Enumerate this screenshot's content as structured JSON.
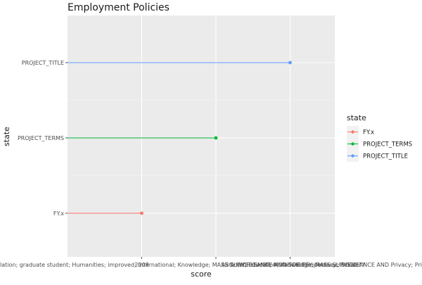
{
  "chart_data": {
    "type": "lollipop",
    "title": "Employment Policies",
    "xlabel": "score",
    "ylabel": "state",
    "categories": [
      "FY.x",
      "PROJECT_TERMS",
      "PROJECT_TITLE"
    ],
    "x_tick_labels": [
      "2008",
      "ABC; WORKSHOP; MONITOR Perspectives; SOCIETY",
      "Adult; Education; Knowledge; MASS SURVEILLANCE AND Privacy; Private"
    ],
    "x_tick_labels_overlap_text": "lation; graduate student; Humanities; improved; International; Knowledge; MASS SURVEILLANCE AND SOCIETY; Privacy; Private",
    "series": [
      {
        "name": "FY.x",
        "category": "FY.x",
        "x_index": 1,
        "color": "#F8766D"
      },
      {
        "name": "PROJECT_TERMS",
        "category": "PROJECT_TERMS",
        "x_index": 2,
        "color": "#00BA38"
      },
      {
        "name": "PROJECT_TITLE",
        "category": "PROJECT_TITLE",
        "x_index": 3,
        "color": "#619CFF"
      }
    ],
    "legend": {
      "title": "state",
      "position": "right",
      "entries": [
        "FY.x",
        "PROJECT_TERMS",
        "PROJECT_TITLE"
      ]
    },
    "grid": true,
    "panel_background": "#EBEBEB"
  }
}
